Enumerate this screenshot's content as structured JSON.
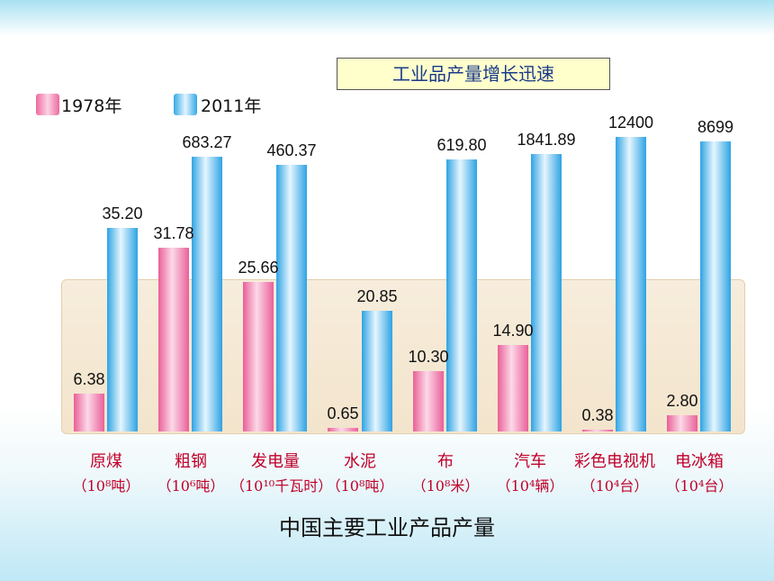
{
  "title_box": "工业品产量增长迅速",
  "legend": [
    {
      "label": "1978年",
      "color": "#ee6a9e"
    },
    {
      "label": "2011年",
      "color": "#34a8e6"
    }
  ],
  "caption": "中国主要工业产品产量",
  "chart_data": {
    "type": "bar",
    "title": "工业品产量增长迅速",
    "categories": [
      "原煤",
      "粗钢",
      "发电量",
      "水泥",
      "布",
      "汽车",
      "彩色电视机",
      "电冰箱"
    ],
    "category_units": [
      "（10⁸吨）",
      "（10⁶吨）",
      "（10¹⁰千瓦时）",
      "（10⁸吨）",
      "（10⁸米）",
      "（10⁴辆）",
      "（10⁴台）",
      "（10⁴台）"
    ],
    "series": [
      {
        "name": "1978年",
        "values": [
          6.38,
          31.78,
          25.66,
          0.65,
          10.3,
          14.9,
          0.38,
          2.8
        ],
        "labels": [
          "6.38",
          "31.78",
          "25.66",
          "0.65",
          "10.30",
          "14.90",
          "0.38",
          "2.80"
        ]
      },
      {
        "name": "2011年",
        "values": [
          35.2,
          683.27,
          460.37,
          20.85,
          619.8,
          1841.89,
          12400,
          8699
        ],
        "labels": [
          "35.20",
          "683.27",
          "460.37",
          "20.85",
          "619.80",
          "1841.89",
          "12400",
          "8699"
        ]
      }
    ],
    "xlabel": "中国主要工业产品产量",
    "ylabel": "",
    "legend_position": "top-left",
    "grid": false
  }
}
